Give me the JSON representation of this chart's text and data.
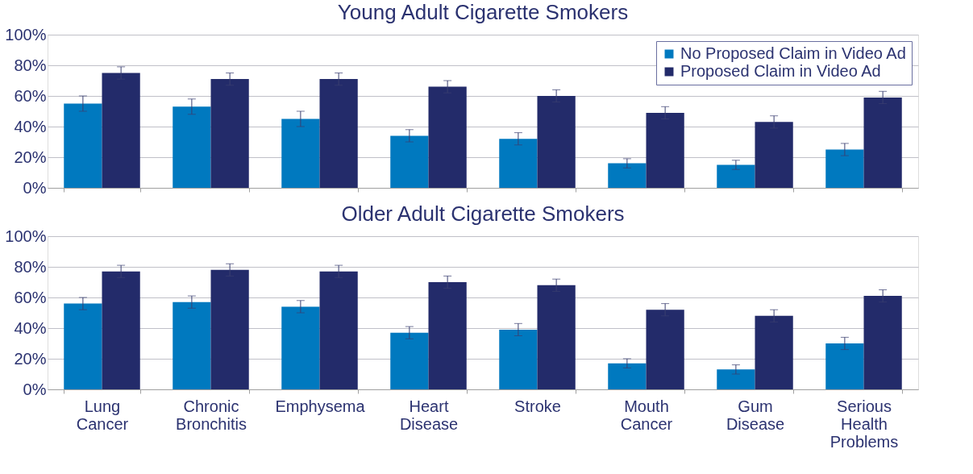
{
  "chart_data": [
    {
      "type": "bar",
      "title": "Young Adult Cigarette Smokers",
      "categories": [
        null,
        null,
        null,
        null,
        null,
        null,
        null,
        null
      ],
      "series": [
        {
          "name": "No Proposed Claim in Video Ad",
          "color": "#0079bf",
          "values": [
            55,
            53,
            45,
            34,
            32,
            16,
            15,
            25
          ],
          "errors": [
            5,
            5,
            5,
            4,
            4,
            3,
            3,
            4
          ]
        },
        {
          "name": "Proposed Claim in Video Ad",
          "color": "#232b6a",
          "values": [
            75,
            71,
            71,
            66,
            60,
            49,
            43,
            59
          ],
          "errors": [
            4,
            4,
            4,
            4,
            4,
            4,
            4,
            4
          ]
        }
      ],
      "ylim": [
        0,
        100
      ],
      "yticks": [
        {
          "value": 0,
          "label": "0%"
        },
        {
          "value": 20,
          "label": "20%"
        },
        {
          "value": 40,
          "label": "40%"
        },
        {
          "value": 60,
          "label": "60%"
        },
        {
          "value": 80,
          "label": "80%"
        },
        {
          "value": 100,
          "label": "100%"
        }
      ],
      "grid": "y",
      "legend": "top right",
      "tick_labels": "y"
    },
    {
      "type": "bar",
      "title": "Older Adult Cigarette Smokers",
      "categories": [
        "Lung Cancer",
        "Chronic Bronchitis",
        "Emphysema",
        "Heart Disease",
        "Stroke",
        "Mouth Cancer",
        "Gum Disease",
        "Serious Health Problems"
      ],
      "series": [
        {
          "color": "#0079bf",
          "values": [
            56,
            57,
            54,
            37,
            39,
            17,
            13,
            30
          ],
          "errors": [
            4,
            4,
            4,
            4,
            4,
            3,
            3,
            4
          ]
        },
        {
          "color": "#232b6a",
          "values": [
            77,
            78,
            77,
            70,
            68,
            52,
            48,
            61
          ],
          "errors": [
            4,
            4,
            4,
            4,
            4,
            4,
            4,
            4
          ]
        }
      ],
      "ylim": [
        0,
        100
      ],
      "yticks": [
        {
          "value": 0,
          "label": "0%"
        },
        {
          "value": 20,
          "label": "20%"
        },
        {
          "value": 40,
          "label": "40%"
        },
        {
          "value": 60,
          "label": "60%"
        },
        {
          "value": 80,
          "label": "80%"
        },
        {
          "value": 100,
          "label": "100%"
        }
      ],
      "grid": "y",
      "legend": false
    }
  ]
}
